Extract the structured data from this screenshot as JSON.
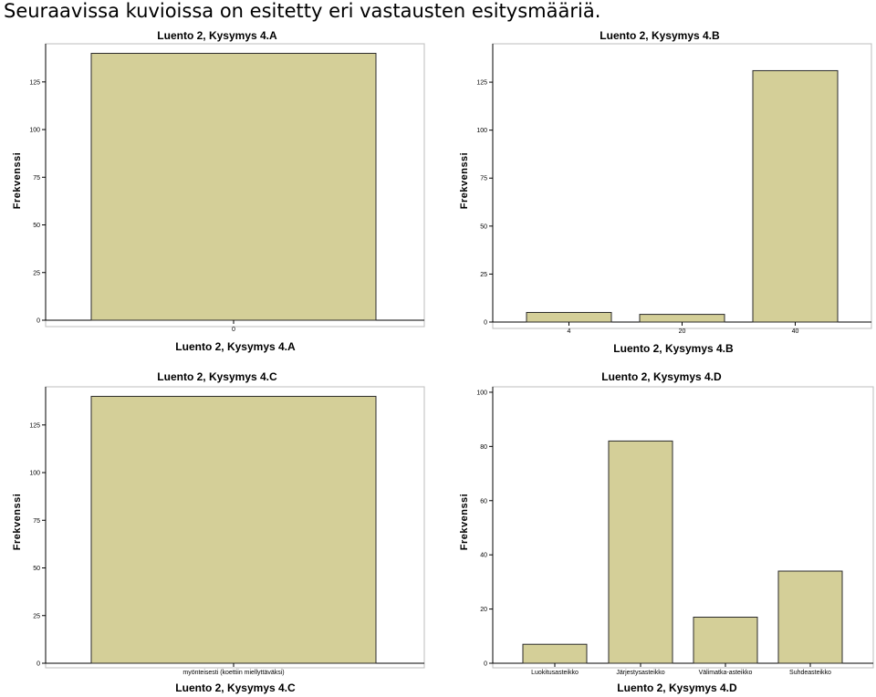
{
  "page_title": "Seuraavissa kuvioissa on esitetty eri vastausten esitysmääriä.",
  "colors": {
    "bar_fill": "#d4cf98",
    "bar_stroke": "#2b2b2b",
    "axis": "#000000",
    "frame": "#bdbdbd"
  },
  "chart_data": [
    {
      "type": "bar",
      "title": "Luento 2, Kysymys 4.A",
      "xlabel": "Luento 2, Kysymys 4.A",
      "ylabel": "Frekvenssi",
      "categories": [
        "0"
      ],
      "values": [
        140
      ],
      "ylim": [
        0,
        145
      ],
      "yticks": [
        0,
        25,
        50,
        75,
        100,
        125
      ],
      "ytick_labels": [
        "0",
        "25",
        "50",
        "75",
        "100",
        "125"
      ],
      "grid": false
    },
    {
      "type": "bar",
      "title": "Luento 2, Kysymys 4.B",
      "xlabel": "Luento 2, Kysymys 4.B",
      "ylabel": "Frekvenssi",
      "categories": [
        "4",
        "20",
        "40"
      ],
      "values": [
        5,
        4,
        131
      ],
      "ylim": [
        0,
        145
      ],
      "yticks": [
        0,
        25,
        50,
        75,
        100,
        125
      ],
      "ytick_labels": [
        "0",
        "25",
        "50",
        "75",
        "100",
        "125"
      ],
      "grid": false
    },
    {
      "type": "bar",
      "title": "Luento 2, Kysymys 4.C",
      "xlabel": "Luento 2, Kysymys 4.C",
      "ylabel": "Frekvenssi",
      "categories": [
        "myönteisesti (koettiin miellyttäväksi)"
      ],
      "values": [
        140
      ],
      "ylim": [
        0,
        145
      ],
      "yticks": [
        0,
        25,
        50,
        75,
        100,
        125
      ],
      "ytick_labels": [
        "0",
        "25",
        "50",
        "75",
        "100",
        "125"
      ],
      "grid": false
    },
    {
      "type": "bar",
      "title": "Luento 2, Kysymys 4.D",
      "xlabel": "Luento 2, Kysymys 4.D",
      "ylabel": "Frekvenssi",
      "categories": [
        "Luokitusasteikko",
        "Järjestysasteikko",
        "Välimatka-asteikko",
        "Suhdeasteikko"
      ],
      "values": [
        7,
        82,
        17,
        34
      ],
      "ylim": [
        0,
        102
      ],
      "yticks": [
        0,
        20,
        40,
        60,
        80,
        100
      ],
      "ytick_labels": [
        "0",
        "20",
        "40",
        "60",
        "80",
        "100"
      ],
      "grid": false
    }
  ]
}
